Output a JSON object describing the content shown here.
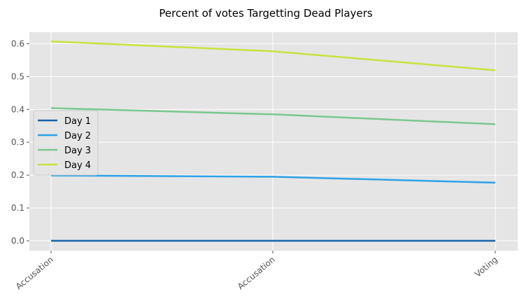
{
  "chart_data": {
    "type": "line",
    "title": "Percent of votes Targetting Dead Players",
    "categories": [
      "Accusation",
      "Accusation",
      "Voting"
    ],
    "xlabel": "",
    "ylabel": "",
    "ylim": [
      -0.03,
      0.635
    ],
    "yticks": [
      "0.0",
      "0.1",
      "0.2",
      "0.3",
      "0.4",
      "0.5",
      "0.6"
    ],
    "grid": true,
    "legend_position": "center-left",
    "background": "#e5e5e5",
    "series": [
      {
        "name": "Day 1",
        "color": "#1764ab",
        "values": [
          0.0,
          0.0,
          0.0
        ]
      },
      {
        "name": "Day 2",
        "color": "#2ca2e8",
        "values": [
          0.199,
          0.195,
          0.177
        ]
      },
      {
        "name": "Day 3",
        "color": "#7ac88f",
        "values": [
          0.404,
          0.385,
          0.355
        ]
      },
      {
        "name": "Day 4",
        "color": "#c8e33c",
        "values": [
          0.607,
          0.577,
          0.519
        ]
      }
    ]
  }
}
